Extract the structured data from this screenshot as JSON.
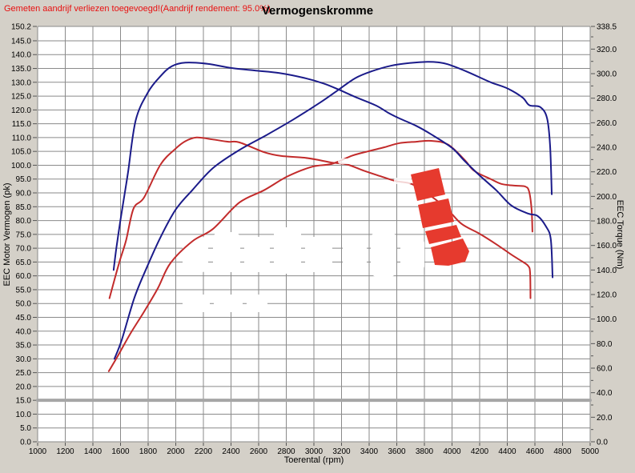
{
  "header": {
    "note": "Gemeten aandrijf verliezen toegevoegd!(Aandrijf rendement: 95.0%)",
    "title": "Vermogenskromme"
  },
  "axes_titles": {
    "left": "EEC Motor Vermogen (pk)",
    "right": "EEC Torque (Nm)",
    "bottom": "Toerental (rpm)"
  },
  "colors": {
    "background": "#d4d0c8",
    "plot_background": "#ffffff",
    "grid": "#8a8a8a",
    "note_red": "#e81010",
    "navy": "#1b1b8a",
    "red": "#c22b2b",
    "loss_gray": "#a6a6a6",
    "logo_red": "#e63a2e",
    "text": "#000000"
  },
  "watermark": {
    "legible": false
  },
  "logo_icon": "red-curved-arrow-logo",
  "chart_data": {
    "type": "line",
    "title": "Vermogenskromme",
    "xlabel": "Toerental (rpm)",
    "ylabel_left": "EEC Motor Vermogen (pk)",
    "ylabel_right": "EEC Torque (Nm)",
    "grid": true,
    "legend": false,
    "x_axis": {
      "min": 1000,
      "max": 5000,
      "ticks": [
        1000,
        1200,
        1400,
        1600,
        1800,
        2000,
        2200,
        2400,
        2600,
        2800,
        3000,
        3200,
        3400,
        3600,
        3800,
        4000,
        4200,
        4400,
        4600,
        4800,
        5000
      ]
    },
    "y_left": {
      "min": 0,
      "max": 150.2,
      "ticks": [
        150.2,
        145,
        140,
        135,
        130,
        125,
        120,
        115,
        110,
        105,
        100,
        95,
        90,
        85,
        80,
        75,
        70,
        65,
        60,
        55,
        50,
        45,
        40,
        35,
        30,
        25,
        20,
        15,
        10,
        5,
        0
      ]
    },
    "y_right": {
      "min": 0,
      "max": 338.5,
      "minor_tick_step": 10,
      "ticks": [
        338.5,
        320,
        300,
        280,
        260,
        240,
        220,
        200,
        180,
        160,
        140,
        120,
        100,
        80,
        60,
        40,
        20,
        0
      ]
    },
    "series": [
      {
        "name": "gray-loss-line",
        "axis": "left",
        "color": "#a6a6a6",
        "width": 4,
        "points": [
          [
            1000,
            15
          ],
          [
            5000,
            15
          ]
        ]
      },
      {
        "name": "red-torque-curve",
        "axis": "right",
        "color": "#c22b2b",
        "width": 2,
        "points": [
          [
            1520,
            117
          ],
          [
            1556,
            132
          ],
          [
            1596,
            148
          ],
          [
            1640,
            164
          ],
          [
            1694,
            190
          ],
          [
            1770,
            199
          ],
          [
            1890,
            226
          ],
          [
            2000,
            239
          ],
          [
            2070,
            245
          ],
          [
            2150,
            248
          ],
          [
            2260,
            246.5
          ],
          [
            2380,
            244.5
          ],
          [
            2460,
            244
          ],
          [
            2640,
            236
          ],
          [
            2760,
            233
          ],
          [
            2930,
            231.5
          ],
          [
            3040,
            229.5
          ],
          [
            3130,
            227.5
          ],
          [
            3240,
            226
          ],
          [
            3360,
            221
          ],
          [
            3480,
            216.5
          ],
          [
            3590,
            212.5
          ],
          [
            3710,
            210
          ],
          [
            3850,
            200
          ],
          [
            3970,
            189
          ],
          [
            4070,
            177.5
          ],
          [
            4200,
            169.5
          ],
          [
            4320,
            161
          ],
          [
            4430,
            152.5
          ],
          [
            4500,
            147.5
          ],
          [
            4550,
            143.5
          ],
          [
            4565,
            138
          ],
          [
            4568,
            117
          ]
        ]
      },
      {
        "name": "red-power-curve",
        "axis": "left",
        "color": "#c22b2b",
        "width": 2,
        "points": [
          [
            1515,
            25.5
          ],
          [
            1580,
            31
          ],
          [
            1670,
            39
          ],
          [
            1770,
            47
          ],
          [
            1870,
            55.5
          ],
          [
            1960,
            64.5
          ],
          [
            2120,
            72.5
          ],
          [
            2270,
            77
          ],
          [
            2460,
            86.5
          ],
          [
            2640,
            91
          ],
          [
            2810,
            96
          ],
          [
            2990,
            99.5
          ],
          [
            3130,
            100.5
          ],
          [
            3280,
            103.5
          ],
          [
            3390,
            105
          ],
          [
            3510,
            106.5
          ],
          [
            3620,
            108
          ],
          [
            3740,
            108.5
          ],
          [
            3850,
            108.8
          ],
          [
            3970,
            107.5
          ],
          [
            4090,
            102
          ],
          [
            4160,
            98
          ],
          [
            4280,
            95
          ],
          [
            4360,
            93.2
          ],
          [
            4460,
            92.6
          ],
          [
            4530,
            92.3
          ],
          [
            4558,
            90.5
          ],
          [
            4576,
            84
          ],
          [
            4582,
            76
          ]
        ]
      },
      {
        "name": "blue-torque-curve",
        "axis": "right",
        "color": "#1b1b8a",
        "width": 2,
        "points": [
          [
            1550,
            140
          ],
          [
            1570,
            158
          ],
          [
            1600,
            181
          ],
          [
            1627,
            200
          ],
          [
            1655,
            220
          ],
          [
            1710,
            262
          ],
          [
            1800,
            285
          ],
          [
            1890,
            298
          ],
          [
            1970,
            306
          ],
          [
            2070,
            309
          ],
          [
            2230,
            308
          ],
          [
            2410,
            304.5
          ],
          [
            2580,
            302.5
          ],
          [
            2750,
            300.5
          ],
          [
            2930,
            296.5
          ],
          [
            3070,
            292
          ],
          [
            3180,
            287
          ],
          [
            3300,
            281
          ],
          [
            3450,
            274
          ],
          [
            3540,
            268
          ],
          [
            3620,
            263.5
          ],
          [
            3740,
            257.5
          ],
          [
            3850,
            250.5
          ],
          [
            4000,
            239.5
          ],
          [
            4090,
            229
          ],
          [
            4200,
            217
          ],
          [
            4320,
            205
          ],
          [
            4430,
            192.5
          ],
          [
            4550,
            186
          ],
          [
            4620,
            184
          ],
          [
            4680,
            175.5
          ],
          [
            4715,
            165
          ],
          [
            4728,
            134
          ]
        ]
      },
      {
        "name": "blue-power-curve",
        "axis": "left",
        "color": "#1b1b8a",
        "width": 2,
        "points": [
          [
            1556,
            30
          ],
          [
            1610,
            37
          ],
          [
            1700,
            52
          ],
          [
            1790,
            63
          ],
          [
            1890,
            74
          ],
          [
            2000,
            84
          ],
          [
            2120,
            91
          ],
          [
            2270,
            99
          ],
          [
            2460,
            105.5
          ],
          [
            2660,
            111
          ],
          [
            2850,
            116.5
          ],
          [
            3040,
            122.5
          ],
          [
            3170,
            127
          ],
          [
            3300,
            131.5
          ],
          [
            3420,
            134
          ],
          [
            3560,
            136
          ],
          [
            3700,
            137
          ],
          [
            3820,
            137.4
          ],
          [
            3900,
            137.2
          ],
          [
            3970,
            136.5
          ],
          [
            4110,
            133.8
          ],
          [
            4280,
            130
          ],
          [
            4400,
            127.8
          ],
          [
            4510,
            124.5
          ],
          [
            4560,
            121.7
          ],
          [
            4640,
            121
          ],
          [
            4688,
            117
          ],
          [
            4710,
            107
          ],
          [
            4722,
            89.5
          ]
        ]
      }
    ]
  }
}
